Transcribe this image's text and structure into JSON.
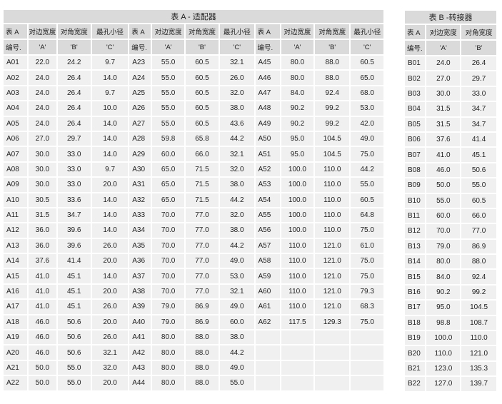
{
  "table_a": {
    "title": "表 A - 适配器",
    "header_top": [
      "表 A",
      "对边宽度",
      "对角宽度",
      "最孔小径"
    ],
    "header_bottom": [
      "编号.",
      "'A'",
      "'B'",
      "'C'"
    ],
    "rows": [
      [
        "A01",
        "22.0",
        "24.2",
        "9.7"
      ],
      [
        "A02",
        "24.0",
        "26.4",
        "14.0"
      ],
      [
        "A03",
        "24.0",
        "26.4",
        "9.7"
      ],
      [
        "A04",
        "24.0",
        "26.4",
        "10.0"
      ],
      [
        "A05",
        "24.0",
        "26.4",
        "14.0"
      ],
      [
        "A06",
        "27.0",
        "29.7",
        "14.0"
      ],
      [
        "A07",
        "30.0",
        "33.0",
        "14.0"
      ],
      [
        "A08",
        "30.0",
        "33.0",
        "9.7"
      ],
      [
        "A09",
        "30.0",
        "33.0",
        "20.0"
      ],
      [
        "A10",
        "30.5",
        "33.6",
        "14.0"
      ],
      [
        "A11",
        "31.5",
        "34.7",
        "14.0"
      ],
      [
        "A12",
        "36.0",
        "39.6",
        "14.0"
      ],
      [
        "A13",
        "36.0",
        "39.6",
        "26.0"
      ],
      [
        "A14",
        "37.6",
        "41.4",
        "20.0"
      ],
      [
        "A15",
        "41.0",
        "45.1",
        "14.0"
      ],
      [
        "A16",
        "41.0",
        "45.1",
        "20.0"
      ],
      [
        "A17",
        "41.0",
        "45.1",
        "26.0"
      ],
      [
        "A18",
        "46.0",
        "50.6",
        "20.0"
      ],
      [
        "A19",
        "46.0",
        "50.6",
        "26.0"
      ],
      [
        "A20",
        "46.0",
        "50.6",
        "32.1"
      ],
      [
        "A21",
        "50.0",
        "55.0",
        "32.0"
      ],
      [
        "A22",
        "50.0",
        "55.0",
        "20.0"
      ],
      [
        "A23",
        "55.0",
        "60.5",
        "32.1"
      ],
      [
        "A24",
        "55.0",
        "60.5",
        "26.0"
      ],
      [
        "A25",
        "55.0",
        "60.5",
        "32.0"
      ],
      [
        "A26",
        "55.0",
        "60.5",
        "38.0"
      ],
      [
        "A27",
        "55.0",
        "60.5",
        "43.6"
      ],
      [
        "A28",
        "59.8",
        "65.8",
        "44.2"
      ],
      [
        "A29",
        "60.0",
        "66.0",
        "32.1"
      ],
      [
        "A30",
        "65.0",
        "71.5",
        "32.0"
      ],
      [
        "A31",
        "65.0",
        "71.5",
        "38.0"
      ],
      [
        "A32",
        "65.0",
        "71.5",
        "44.2"
      ],
      [
        "A33",
        "70.0",
        "77.0",
        "32.0"
      ],
      [
        "A34",
        "70.0",
        "77.0",
        "38.0"
      ],
      [
        "A35",
        "70.0",
        "77.0",
        "44.2"
      ],
      [
        "A36",
        "70.0",
        "77.0",
        "49.0"
      ],
      [
        "A37",
        "70.0",
        "77.0",
        "53.0"
      ],
      [
        "A38",
        "70.0",
        "77.0",
        "32.1"
      ],
      [
        "A39",
        "79.0",
        "86.9",
        "49.0"
      ],
      [
        "A40",
        "79.0",
        "86.9",
        "60.0"
      ],
      [
        "A41",
        "80.0",
        "88.0",
        "38.0"
      ],
      [
        "A42",
        "80.0",
        "88.0",
        "44.2"
      ],
      [
        "A43",
        "80.0",
        "88.0",
        "49.0"
      ],
      [
        "A44",
        "80.0",
        "88.0",
        "55.0"
      ],
      [
        "A45",
        "80.0",
        "88.0",
        "60.5"
      ],
      [
        "A46",
        "80.0",
        "88.0",
        "65.0"
      ],
      [
        "A47",
        "84.0",
        "92.4",
        "68.0"
      ],
      [
        "A48",
        "90.2",
        "99.2",
        "53.0"
      ],
      [
        "A49",
        "90.2",
        "99.2",
        "42.0"
      ],
      [
        "A50",
        "95.0",
        "104.5",
        "49.0"
      ],
      [
        "A51",
        "95.0",
        "104.5",
        "75.0"
      ],
      [
        "A52",
        "100.0",
        "110.0",
        "44.2"
      ],
      [
        "A53",
        "100.0",
        "110.0",
        "55.0"
      ],
      [
        "A54",
        "100.0",
        "110.0",
        "60.5"
      ],
      [
        "A55",
        "100.0",
        "110.0",
        "64.8"
      ],
      [
        "A56",
        "100.0",
        "110.0",
        "75.0"
      ],
      [
        "A57",
        "110.0",
        "121.0",
        "61.0"
      ],
      [
        "A58",
        "110.0",
        "121.0",
        "75.0"
      ],
      [
        "A59",
        "110.0",
        "121.0",
        "75.0"
      ],
      [
        "A60",
        "110.0",
        "121.0",
        "79.3"
      ],
      [
        "A61",
        "110.0",
        "121.0",
        "68.3"
      ],
      [
        "A62",
        "117.5",
        "129.3",
        "75.0"
      ]
    ]
  },
  "table_b": {
    "title": "表 B -转接器",
    "header_top": [
      "表 A",
      "对边宽度",
      "对角宽度"
    ],
    "header_bottom": [
      "编号.",
      "'A'",
      "'B'"
    ],
    "rows": [
      [
        "B01",
        "24.0",
        "26.4"
      ],
      [
        "B02",
        "27.0",
        "29.7"
      ],
      [
        "B03",
        "30.0",
        "33.0"
      ],
      [
        "B04",
        "31.5",
        "34.7"
      ],
      [
        "B05",
        "31.5",
        "34.7"
      ],
      [
        "B06",
        "37.6",
        "41.4"
      ],
      [
        "B07",
        "41.0",
        "45.1"
      ],
      [
        "B08",
        "46.0",
        "50.6"
      ],
      [
        "B09",
        "50.0",
        "55.0"
      ],
      [
        "B10",
        "55.0",
        "60.5"
      ],
      [
        "B11",
        "60.0",
        "66.0"
      ],
      [
        "B12",
        "70.0",
        "77.0"
      ],
      [
        "B13",
        "79.0",
        "86.9"
      ],
      [
        "B14",
        "80.0",
        "88.0"
      ],
      [
        "B15",
        "84.0",
        "92.4"
      ],
      [
        "B16",
        "90.2",
        "99.2"
      ],
      [
        "B17",
        "95.0",
        "104.5"
      ],
      [
        "B18",
        "98.8",
        "108.7"
      ],
      [
        "B19",
        "100.0",
        "110.0"
      ],
      [
        "B20",
        "110.0",
        "121.0"
      ],
      [
        "B21",
        "123.0",
        "135.3"
      ],
      [
        "B22",
        "127.0",
        "139.7"
      ]
    ]
  }
}
